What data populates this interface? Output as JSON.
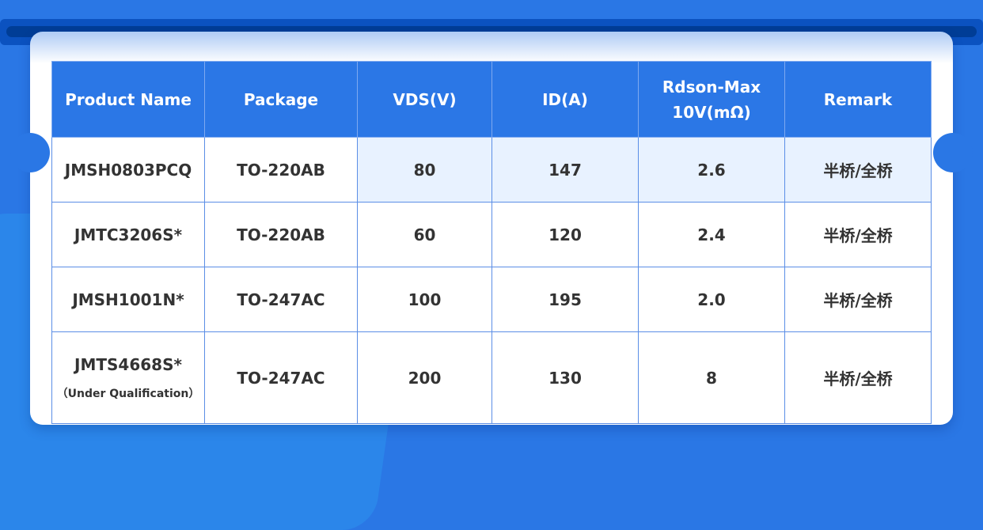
{
  "table": {
    "headers": [
      "Product Name",
      "Package",
      "VDS(V)",
      "ID(A)",
      "Rdson-Max 10V(mΩ)",
      "Remark"
    ],
    "header_rdson_line1": "Rdson-Max",
    "header_rdson_line2": "10V(mΩ)",
    "rows": [
      {
        "product": "JMSH0803PCQ",
        "package": "TO-220AB",
        "vds": "80",
        "id": "147",
        "rdson": "2.6",
        "remark": "半桥/全桥",
        "note": ""
      },
      {
        "product": "JMTC3206S*",
        "package": "TO-220AB",
        "vds": "60",
        "id": "120",
        "rdson": "2.4",
        "remark": "半桥/全桥",
        "note": ""
      },
      {
        "product": "JMSH1001N*",
        "package": "TO-247AC",
        "vds": "100",
        "id": "195",
        "rdson": "2.0",
        "remark": "半桥/全桥",
        "note": ""
      },
      {
        "product": "JMTS4668S*",
        "package": "TO-247AC",
        "vds": "200",
        "id": "130",
        "rdson": "8",
        "remark": "半桥/全桥",
        "note": "（Under Qualification）"
      }
    ]
  },
  "colors": {
    "background": "#2a77e5",
    "header": "#2b77e6",
    "highlight": "#e8f2ff"
  }
}
